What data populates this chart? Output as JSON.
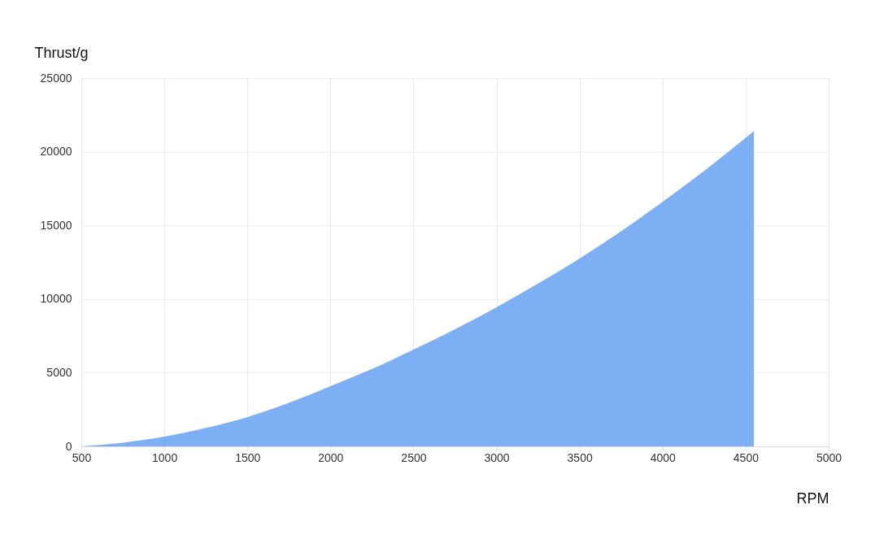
{
  "chart_data": {
    "type": "area",
    "xlabel": "RPM",
    "ylabel": "Thrust/g",
    "x": [
      500,
      750,
      1000,
      1250,
      1500,
      1750,
      2000,
      2250,
      2500,
      2750,
      3000,
      3250,
      3500,
      3750,
      4000,
      4250,
      4550
    ],
    "series": [
      {
        "color": "#6ea6f2",
        "values": [
          0,
          250,
          660,
          1250,
          1990,
          2950,
          4080,
          5250,
          6570,
          7950,
          9440,
          11050,
          12750,
          14600,
          16600,
          18700,
          21400
        ]
      }
    ],
    "xlim": [
      500,
      5000
    ],
    "xticks": [
      500,
      1000,
      1500,
      2000,
      2500,
      3000,
      3500,
      4000,
      4500,
      5000
    ],
    "ylim": [
      0,
      25000
    ],
    "yticks": [
      0,
      5000,
      10000,
      15000,
      20000,
      25000
    ],
    "grid": true
  }
}
